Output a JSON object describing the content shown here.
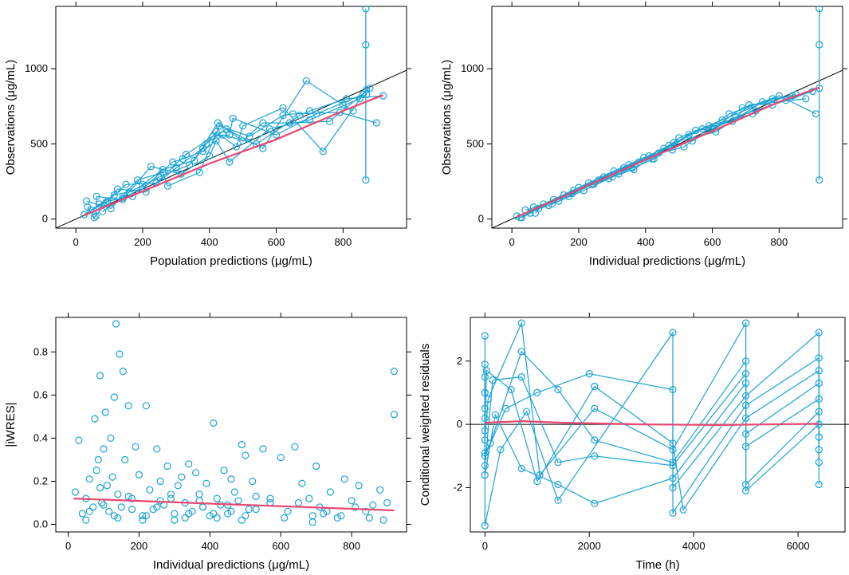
{
  "colors": {
    "points": "#1aa3d6",
    "smooth": "#e8476f",
    "reference": "#000000"
  },
  "chart_data": [
    {
      "id": "dv-vs-pred",
      "type": "scatter",
      "xlabel": "Population predictions (μg/mL)",
      "ylabel": "Observations (μg/mL)",
      "xlim": [
        -60,
        990
      ],
      "ylim": [
        -60,
        1415
      ],
      "xticks": [
        0,
        200,
        400,
        600,
        800
      ],
      "yticks": [
        0,
        500,
        1000
      ],
      "reference": "identity",
      "subject_lines": true,
      "x": [
        25,
        32,
        45,
        55,
        62,
        70,
        80,
        95,
        105,
        115,
        125,
        140,
        150,
        160,
        170,
        185,
        200,
        210,
        225,
        240,
        250,
        260,
        275,
        290,
        300,
        315,
        330,
        340,
        355,
        370,
        380,
        390,
        400,
        410,
        420,
        425,
        430,
        440,
        450,
        460,
        470,
        480,
        500,
        520,
        540,
        560,
        580,
        600,
        620,
        640,
        650,
        670,
        690,
        700,
        720,
        740,
        760,
        790,
        810,
        830,
        850,
        860,
        870,
        880,
        900,
        920,
        35,
        60,
        90,
        140,
        200,
        260,
        320,
        380,
        420,
        460,
        500,
        560,
        620,
        700,
        800,
        870
      ],
      "y": [
        30,
        120,
        60,
        10,
        150,
        100,
        50,
        120,
        70,
        160,
        200,
        130,
        230,
        180,
        150,
        260,
        200,
        180,
        350,
        240,
        280,
        330,
        220,
        380,
        340,
        300,
        430,
        360,
        390,
        310,
        450,
        500,
        420,
        550,
        580,
        640,
        620,
        560,
        600,
        380,
        670,
        480,
        520,
        550,
        500,
        470,
        600,
        560,
        740,
        640,
        700,
        690,
        920,
        660,
        700,
        450,
        650,
        710,
        800,
        720,
        800,
        830,
        860,
        870,
        640,
        820,
        80,
        20,
        110,
        140,
        230,
        310,
        400,
        470,
        520,
        560,
        620,
        640,
        690,
        720,
        760,
        830
      ],
      "smooth": [
        [
          25,
          25
        ],
        [
          200,
          185
        ],
        [
          400,
          370
        ],
        [
          600,
          530
        ],
        [
          800,
          720
        ],
        [
          920,
          825
        ]
      ],
      "outlier": {
        "x": 868,
        "y": [
          1400,
          1160,
          260
        ]
      }
    },
    {
      "id": "dv-vs-ipred",
      "type": "scatter",
      "xlabel": "Individual predictions (μg/mL)",
      "ylabel": "Observations (μg/mL)",
      "xlim": [
        -60,
        990
      ],
      "ylim": [
        -60,
        1415
      ],
      "xticks": [
        0,
        200,
        400,
        600,
        800
      ],
      "yticks": [
        0,
        500,
        1000
      ],
      "reference": "identity",
      "subject_lines": true,
      "x": [
        15,
        25,
        40,
        55,
        65,
        80,
        95,
        110,
        125,
        140,
        155,
        170,
        185,
        200,
        215,
        230,
        245,
        260,
        275,
        290,
        305,
        320,
        335,
        350,
        365,
        380,
        395,
        410,
        425,
        440,
        455,
        470,
        485,
        500,
        515,
        530,
        550,
        570,
        590,
        610,
        630,
        650,
        670,
        690,
        710,
        730,
        750,
        780,
        800,
        820,
        850,
        880,
        900,
        920,
        30,
        70,
        120,
        180,
        240,
        300,
        360,
        420,
        480,
        540,
        600,
        660,
        720,
        780,
        840,
        910
      ],
      "y": [
        20,
        10,
        60,
        40,
        80,
        70,
        100,
        90,
        130,
        120,
        160,
        150,
        190,
        210,
        190,
        240,
        230,
        260,
        280,
        270,
        320,
        300,
        340,
        360,
        330,
        380,
        410,
        420,
        400,
        440,
        470,
        490,
        510,
        540,
        480,
        560,
        590,
        600,
        620,
        580,
        660,
        700,
        680,
        740,
        760,
        720,
        780,
        800,
        820,
        790,
        830,
        800,
        850,
        870,
        10,
        40,
        100,
        170,
        230,
        280,
        340,
        400,
        460,
        520,
        600,
        650,
        700,
        760,
        820,
        700
      ],
      "smooth": [
        [
          15,
          15
        ],
        [
          200,
          195
        ],
        [
          400,
          395
        ],
        [
          600,
          585
        ],
        [
          800,
          780
        ],
        [
          920,
          875
        ]
      ],
      "outlier": {
        "x": 920,
        "y": [
          1400,
          1160,
          260
        ]
      }
    },
    {
      "id": "iwres-vs-ipred",
      "type": "scatter",
      "xlabel": "Individual predictions (μg/mL)",
      "ylabel": "|iWRES|",
      "xlim": [
        -35,
        955
      ],
      "ylim": [
        -0.035,
        0.96
      ],
      "xticks": [
        0,
        200,
        400,
        600,
        800
      ],
      "yticks": [
        0.0,
        0.2,
        0.4,
        0.6,
        0.8
      ],
      "ytick_labels": [
        "0.0",
        "0.2",
        "0.4",
        "0.6",
        "0.8"
      ],
      "reference": "none",
      "subject_lines": false,
      "x": [
        20,
        30,
        40,
        50,
        60,
        70,
        75,
        80,
        85,
        90,
        95,
        100,
        105,
        110,
        115,
        120,
        125,
        130,
        135,
        140,
        145,
        150,
        155,
        160,
        170,
        180,
        190,
        200,
        210,
        220,
        230,
        240,
        250,
        260,
        270,
        280,
        290,
        300,
        310,
        320,
        330,
        340,
        350,
        360,
        370,
        380,
        390,
        400,
        410,
        420,
        430,
        440,
        450,
        460,
        470,
        480,
        490,
        500,
        510,
        520,
        530,
        550,
        570,
        600,
        620,
        640,
        660,
        680,
        690,
        700,
        710,
        720,
        740,
        760,
        780,
        800,
        820,
        840,
        860,
        880,
        900,
        920,
        920,
        50,
        90,
        130,
        170,
        210,
        250,
        290,
        330,
        370,
        410,
        450,
        490,
        530,
        570,
        610,
        650,
        690,
        730,
        770,
        810,
        850,
        890,
        60,
        100,
        140,
        180,
        220,
        260,
        300,
        340,
        380,
        420,
        460,
        500
      ],
      "y": [
        0.15,
        0.39,
        0.05,
        0.12,
        0.21,
        0.08,
        0.49,
        0.25,
        0.3,
        0.69,
        0.1,
        0.35,
        0.52,
        0.18,
        0.06,
        0.4,
        0.22,
        0.59,
        0.93,
        0.14,
        0.79,
        0.08,
        0.71,
        0.3,
        0.55,
        0.12,
        0.36,
        0.23,
        0.04,
        0.55,
        0.16,
        0.07,
        0.35,
        0.2,
        0.09,
        0.27,
        0.12,
        0.05,
        0.18,
        0.22,
        0.1,
        0.28,
        0.06,
        0.24,
        0.14,
        0.08,
        0.19,
        0.04,
        0.47,
        0.12,
        0.09,
        0.25,
        0.05,
        0.21,
        0.15,
        0.11,
        0.37,
        0.32,
        0.07,
        0.2,
        0.13,
        0.35,
        0.1,
        0.31,
        0.06,
        0.36,
        0.19,
        0.12,
        0.04,
        0.27,
        0.08,
        0.05,
        0.15,
        0.03,
        0.21,
        0.11,
        0.18,
        0.06,
        0.09,
        0.16,
        0.1,
        0.71,
        0.51,
        0.02,
        0.17,
        0.04,
        0.13,
        0.02,
        0.08,
        0.14,
        0.03,
        0.11,
        0.05,
        0.09,
        0.02,
        0.07,
        0.12,
        0.03,
        0.1,
        0.01,
        0.06,
        0.04,
        0.08,
        0.03,
        0.02,
        0.06,
        0.09,
        0.03,
        0.07,
        0.04,
        0.11,
        0.02,
        0.05,
        0.08,
        0.03,
        0.06,
        0.04
      ],
      "smooth": [
        [
          15,
          0.12
        ],
        [
          920,
          0.065
        ]
      ]
    },
    {
      "id": "cwres-vs-time",
      "type": "scatter",
      "xlabel": "Time (h)",
      "ylabel": "Conditional weighted residuals",
      "xlim": [
        -280,
        6900
      ],
      "ylim": [
        -3.4,
        3.38
      ],
      "xticks": [
        0,
        2000,
        4000,
        6000
      ],
      "yticks": [
        -2,
        0,
        2
      ],
      "reference": "zero",
      "subject_lines": true,
      "x": [
        0,
        0,
        0,
        0,
        0,
        0,
        0,
        0,
        0,
        0,
        0,
        0,
        0,
        30,
        60,
        100,
        150,
        200,
        300,
        400,
        500,
        700,
        700,
        700,
        700,
        800,
        1000,
        1000,
        1050,
        1400,
        1400,
        1400,
        1400,
        2000,
        2100,
        2100,
        2100,
        2100,
        2100,
        3600,
        3600,
        3600,
        3600,
        3600,
        3600,
        3600,
        3600,
        3600,
        3800,
        5000,
        5000,
        5000,
        5000,
        5000,
        5000,
        5000,
        5000,
        5000,
        5000,
        5000,
        6400,
        6400,
        6400,
        6400,
        6400,
        6400,
        6400,
        6400,
        6400,
        6400,
        6400
      ],
      "y": [
        2.8,
        1.9,
        1.5,
        1.0,
        0.5,
        0.2,
        -0.2,
        -0.5,
        -0.9,
        -1.3,
        -1.6,
        -3.2,
        -1.0,
        1.7,
        0.8,
        -0.6,
        1.4,
        0.3,
        -0.8,
        0.5,
        1.1,
        3.2,
        2.3,
        1.5,
        -1.4,
        0.4,
        1.0,
        -1.8,
        -1.6,
        1.1,
        -1.2,
        -1.9,
        -2.4,
        1.6,
        1.2,
        0.5,
        -0.5,
        -1.0,
        -2.5,
        2.9,
        1.1,
        -0.6,
        -0.8,
        -1.2,
        -1.3,
        -1.7,
        -2.0,
        -2.8,
        -2.7,
        3.2,
        2.0,
        1.6,
        1.3,
        0.9,
        0.6,
        0.2,
        -0.3,
        -0.7,
        -1.9,
        -2.1,
        2.9,
        2.1,
        1.7,
        1.3,
        0.8,
        0.4,
        0.0,
        -0.4,
        -0.8,
        -1.2,
        -1.9
      ],
      "smooth": [
        [
          0,
          0.05
        ],
        [
          700,
          0.1
        ],
        [
          1500,
          0.05
        ],
        [
          3000,
          0.0
        ],
        [
          4500,
          -0.02
        ],
        [
          6400,
          0.02
        ]
      ]
    }
  ]
}
